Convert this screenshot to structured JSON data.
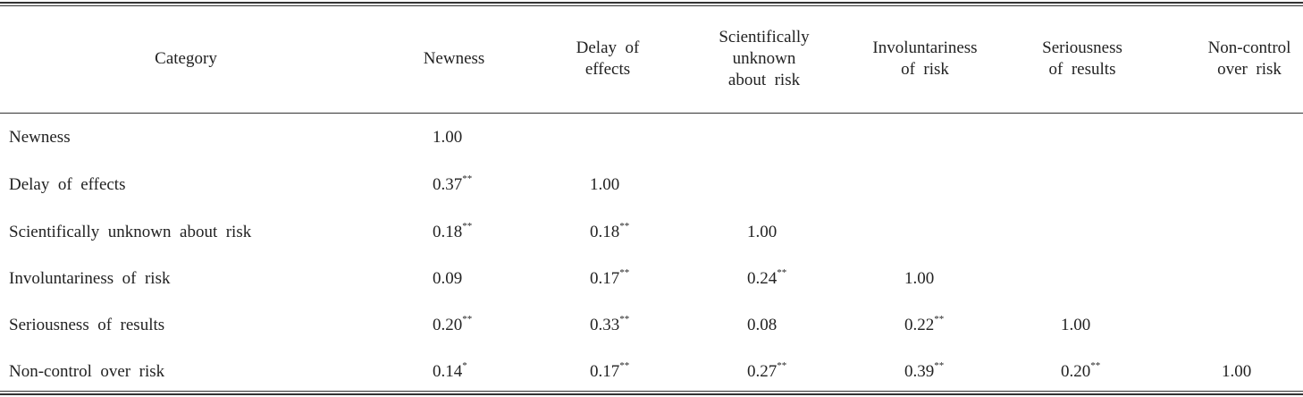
{
  "table": {
    "header": [
      [
        "Category"
      ],
      [
        "Newness"
      ],
      [
        "Delay  of",
        "effects"
      ],
      [
        "Scientifically",
        "unknown",
        "about  risk"
      ],
      [
        "Involuntariness",
        "of  risk"
      ],
      [
        "Seriousness",
        "of  results"
      ],
      [
        "Non-control",
        "over  risk"
      ]
    ],
    "rows": [
      {
        "label": "Newness",
        "cells": [
          {
            "text": "1.00"
          }
        ]
      },
      {
        "label": "Delay  of  effects",
        "cells": [
          {
            "text": "0.37",
            "sig": "**"
          },
          {
            "text": "1.00"
          }
        ]
      },
      {
        "label": "Scientifically  unknown  about  risk",
        "cells": [
          {
            "text": "0.18",
            "sig": "**"
          },
          {
            "text": "0.18",
            "sig": "**"
          },
          {
            "text": "1.00"
          }
        ]
      },
      {
        "label": "Involuntariness  of  risk",
        "cells": [
          {
            "text": "0.09"
          },
          {
            "text": "0.17",
            "sig": "**"
          },
          {
            "text": "0.24",
            "sig": "**"
          },
          {
            "text": "1.00"
          }
        ]
      },
      {
        "label": "Seriousness  of  results",
        "cells": [
          {
            "text": "0.20",
            "sig": "**"
          },
          {
            "text": "0.33",
            "sig": "**"
          },
          {
            "text": "0.08"
          },
          {
            "text": "0.22",
            "sig": "**"
          },
          {
            "text": "1.00"
          }
        ]
      },
      {
        "label": "Non-control  over  risk",
        "cells": [
          {
            "text": "0.14",
            "sig": "*"
          },
          {
            "text": "0.17",
            "sig": "**"
          },
          {
            "text": "0.27",
            "sig": "**"
          },
          {
            "text": "0.39",
            "sig": "**"
          },
          {
            "text": "0.20",
            "sig": "**"
          },
          {
            "text": "1.00"
          }
        ]
      }
    ]
  }
}
